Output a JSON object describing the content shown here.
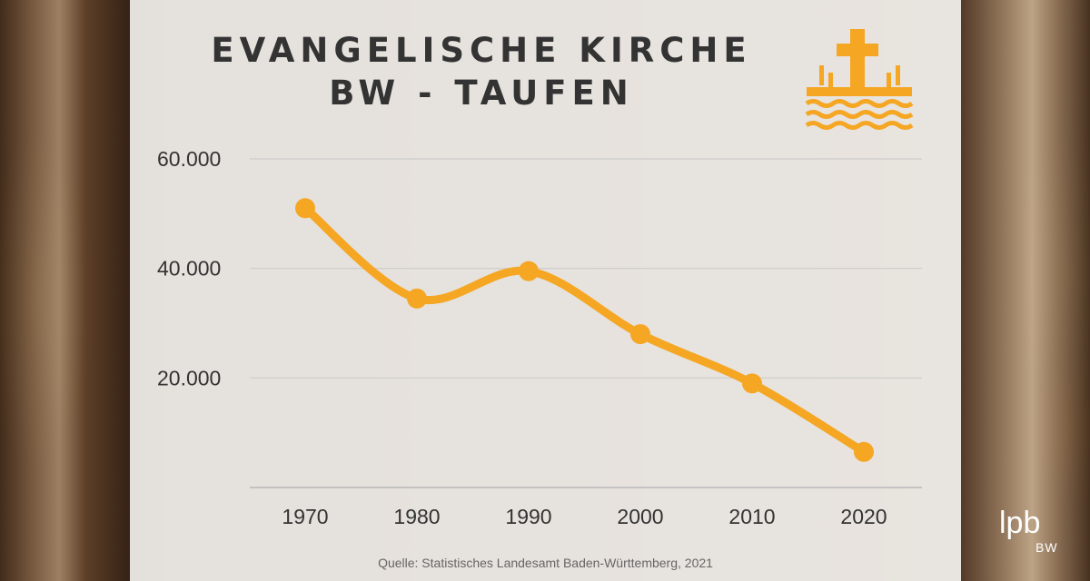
{
  "title_line1": "EVANGELISCHE KIRCHE",
  "title_line2": "BW - TAUFEN",
  "icon": "cross-over-water-icon",
  "source": "Quelle: Statistisches Landesamt Baden-Württemberg, 2021",
  "logo": {
    "main": "lpb",
    "sub": "BW"
  },
  "colors": {
    "line": "#F5A623",
    "grid": "#cccccc",
    "text": "#333333"
  },
  "chart_data": {
    "type": "line",
    "categories": [
      "1970",
      "1980",
      "1990",
      "2000",
      "2010",
      "2020"
    ],
    "series": [
      {
        "values": [
          51000,
          34500,
          39500,
          28000,
          19000,
          6500
        ]
      }
    ],
    "ylim": [
      0,
      60000
    ],
    "yticks": [
      20000,
      40000,
      60000
    ],
    "ytick_labels": [
      "20.000",
      "40.000",
      "60.000"
    ],
    "grid": true,
    "smooth": true
  }
}
